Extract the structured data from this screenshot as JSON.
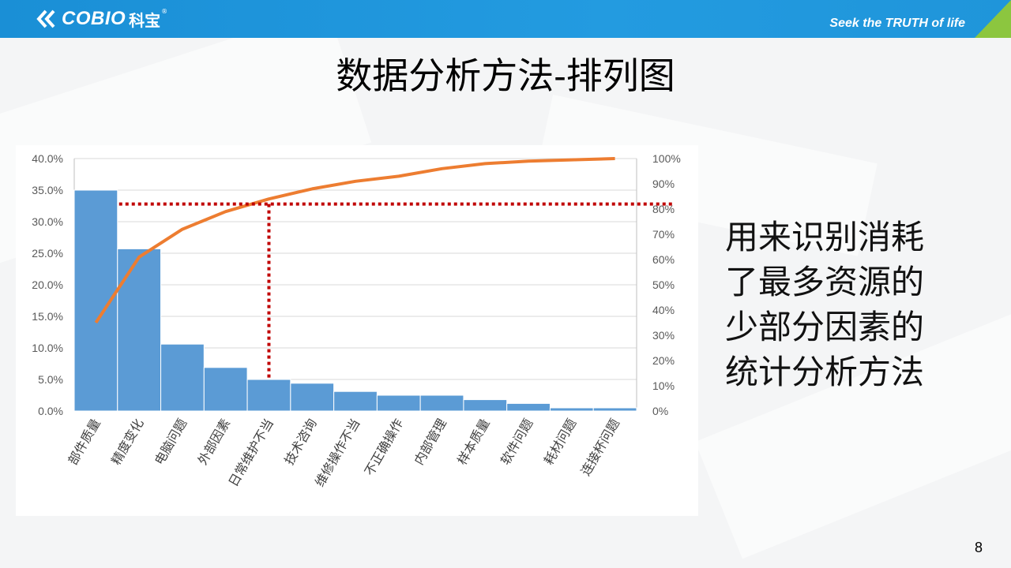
{
  "header": {
    "logo_text": "COBIO",
    "logo_cn": "科宝",
    "logo_reg": "®",
    "slogan": "Seek the TRUTH of life"
  },
  "title": "数据分析方法-排列图",
  "side_text": [
    "用来识别消耗",
    "了最多资源的",
    "少部分因素的",
    "统计分析方法"
  ],
  "page_number": "8",
  "colors": {
    "header_blue": "#1f95da",
    "bar": "#5b9bd5",
    "line": "#ed7d31",
    "guide": "#c00000",
    "corner_green": "#8cc63f"
  },
  "chart_data": {
    "type": "bar",
    "categories": [
      "部件质量",
      "精度变化",
      "电脑问题",
      "外部因素",
      "日常维护不当",
      "技术咨询",
      "维修操作不当",
      "不正确操作",
      "内部管理",
      "样本质量",
      "软件问题",
      "耗材问题",
      "连接杯问题"
    ],
    "series": [
      {
        "type": "bar",
        "axis": "left",
        "values": [
          35.0,
          25.7,
          10.6,
          6.9,
          5.0,
          4.4,
          3.1,
          2.5,
          2.5,
          1.8,
          1.2,
          0.5,
          0.5
        ]
      },
      {
        "type": "line",
        "axis": "right",
        "values": [
          35,
          61,
          72,
          79,
          84,
          88,
          91,
          93,
          96,
          98,
          99,
          99.5,
          100
        ]
      }
    ],
    "y_left": {
      "ylim": [
        0,
        40
      ],
      "ticks": [
        "0.0%",
        "5.0%",
        "10.0%",
        "15.0%",
        "20.0%",
        "25.0%",
        "30.0%",
        "35.0%",
        "40.0%"
      ]
    },
    "y_right": {
      "ylim": [
        0,
        100
      ],
      "ticks": [
        "0%",
        "10%",
        "20%",
        "30%",
        "40%",
        "50%",
        "60%",
        "70%",
        "80%",
        "90%",
        "100%"
      ]
    },
    "grid": true,
    "reference_lines": {
      "horizontal_right_value": 82,
      "vertical_category_index": 4
    }
  }
}
